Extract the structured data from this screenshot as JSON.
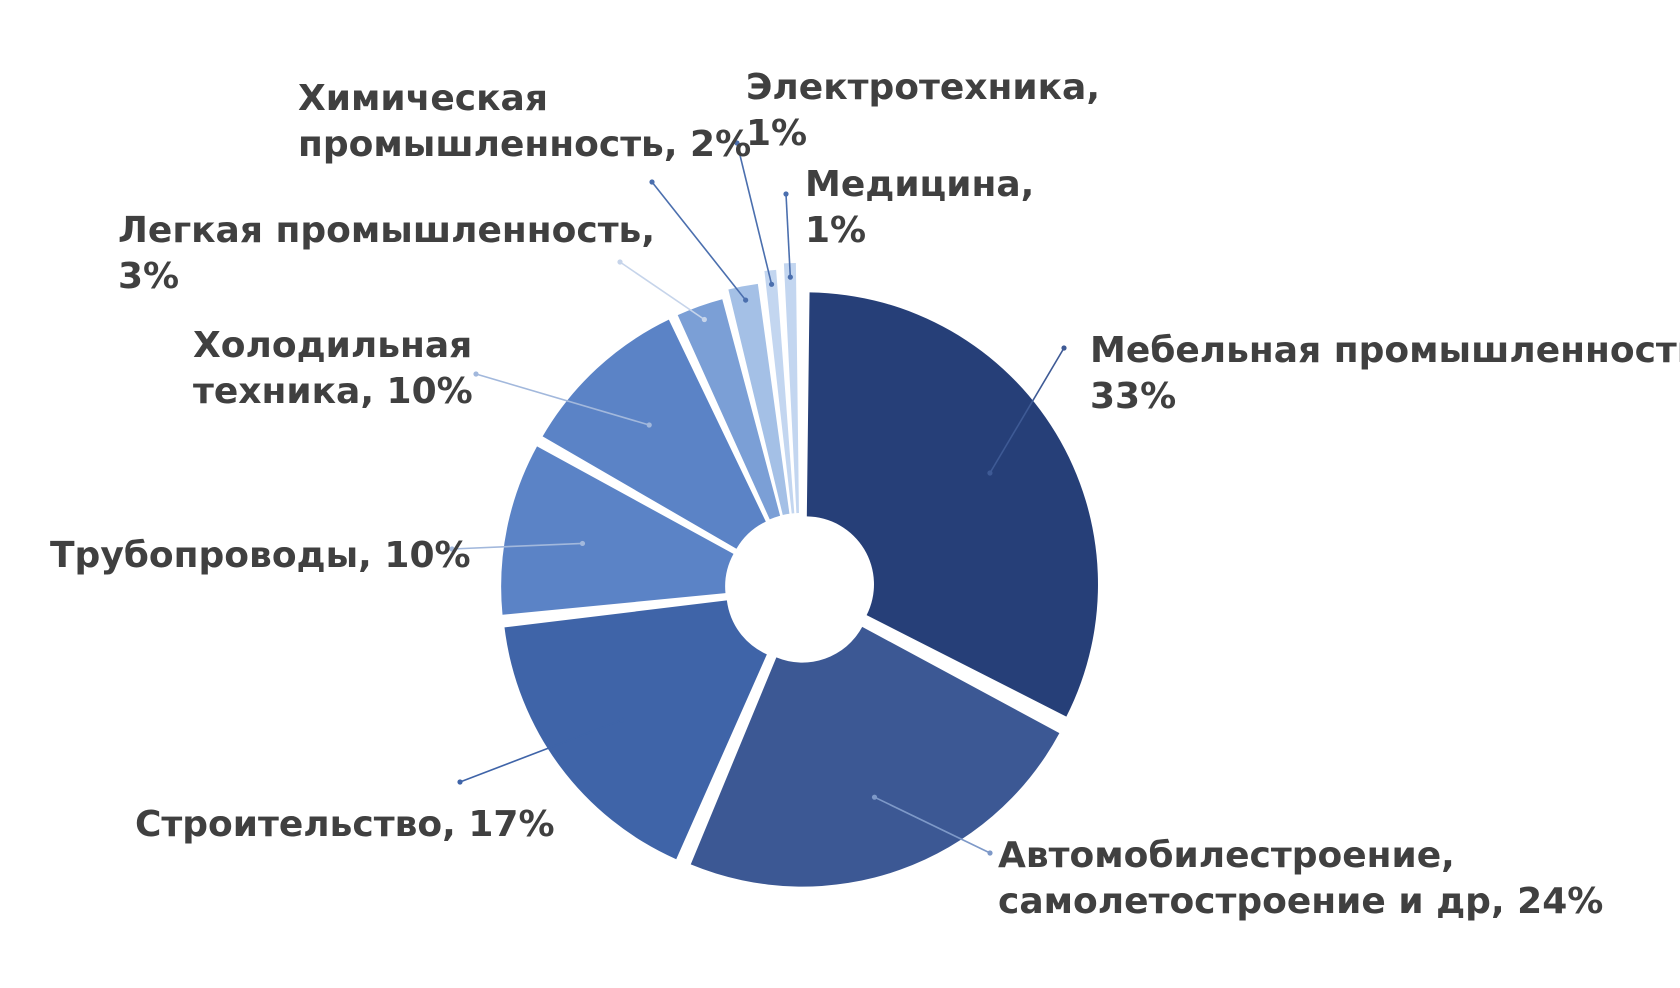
{
  "chart_data": {
    "type": "pie",
    "donut": true,
    "exploded": true,
    "title": "",
    "legend": "none",
    "slices": [
      {
        "label_lines": [
          "Мебельная промышленность,",
          "33%"
        ],
        "value": 33,
        "color": "#263f78"
      },
      {
        "label_lines": [
          "Автомобилестроение,",
          "самолетостроение и др, 24%"
        ],
        "value": 24,
        "color": "#3c5894"
      },
      {
        "label_lines": [
          "Строительство, 17%"
        ],
        "value": 17,
        "color": "#3f64a8"
      },
      {
        "label_lines": [
          "Трубопроводы, 10%"
        ],
        "value": 10,
        "color": "#5b83c6"
      },
      {
        "label_lines": [
          "Холодильная",
          "техника, 10%"
        ],
        "value": 10,
        "color": "#5b83c6"
      },
      {
        "label_lines": [
          "Легкая промышленность,",
          "3%"
        ],
        "value": 3,
        "color": "#7b9fd6"
      },
      {
        "label_lines": [
          "Химическая",
          "промышленность, 2%"
        ],
        "value": 2,
        "color": "#a4c0e6"
      },
      {
        "label_lines": [
          "Электротехника,",
          "1%"
        ],
        "value": 1,
        "color": "#c3d6f0"
      },
      {
        "label_lines": [
          "Медицина,",
          "1%"
        ],
        "value": 1,
        "color": "#c3d6f0"
      }
    ]
  }
}
